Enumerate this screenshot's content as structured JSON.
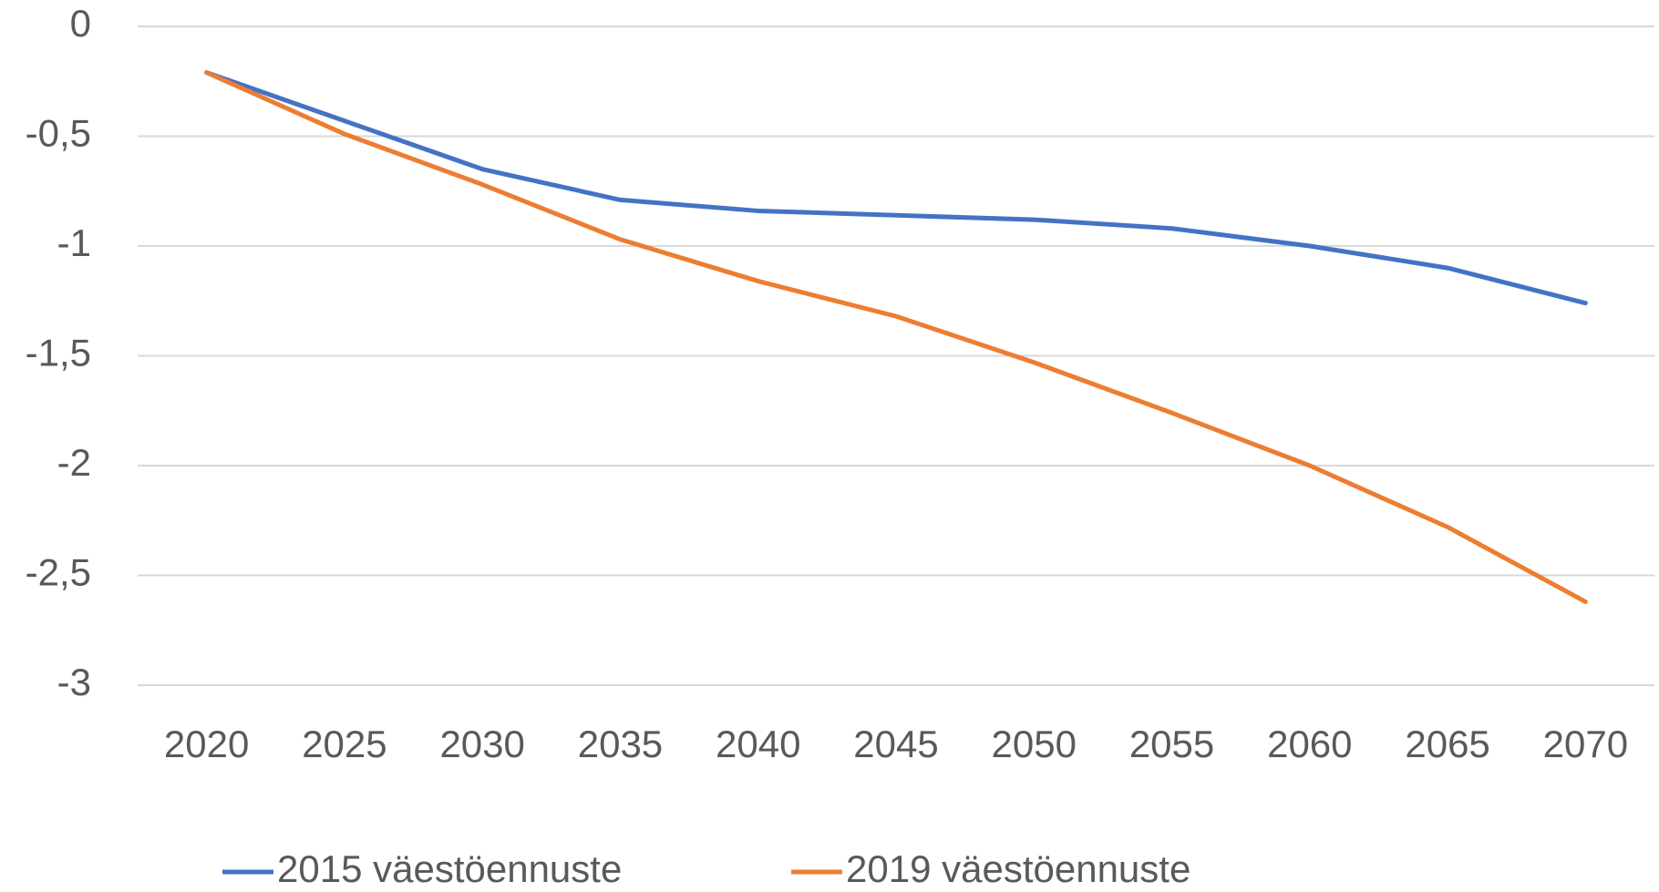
{
  "chart_data": {
    "type": "line",
    "categories": [
      "2020",
      "2025",
      "2030",
      "2035",
      "2040",
      "2045",
      "2050",
      "2055",
      "2060",
      "2065",
      "2070"
    ],
    "series": [
      {
        "name": "2015 väestöennuste",
        "color": "#4472c4",
        "values": [
          -0.21,
          -0.43,
          -0.65,
          -0.79,
          -0.84,
          -0.86,
          -0.88,
          -0.92,
          -1.0,
          -1.1,
          -1.26
        ]
      },
      {
        "name": "2019 väestöennuste",
        "color": "#ed7d31",
        "values": [
          -0.21,
          -0.49,
          -0.72,
          -0.97,
          -1.16,
          -1.32,
          -1.53,
          -1.76,
          -2.0,
          -2.28,
          -2.62
        ]
      }
    ],
    "ylim": [
      -3,
      0
    ],
    "yticks": [
      0,
      {
        "value": -0.5,
        "label": "-0,5"
      },
      -1,
      {
        "value": -1.5,
        "label": "-1,5"
      },
      -2,
      {
        "value": -2.5,
        "label": "-2,5"
      },
      -3
    ],
    "grid": true,
    "legend": "bottom"
  }
}
